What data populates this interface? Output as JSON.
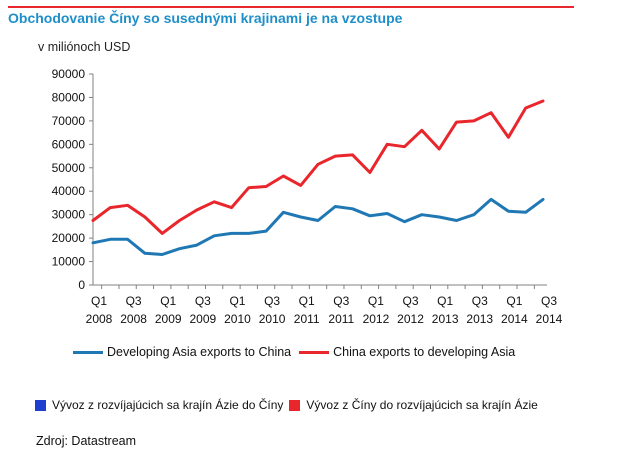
{
  "title": "Obchodovanie Číny so susednými krajinami je na vzostupe",
  "unit_label": "v milióno ch USD",
  "source": "Zdroj: Datastream",
  "colors": {
    "blue": "#1f78b4",
    "red": "#e8262b",
    "title": "#1f8fc9"
  },
  "legend": [
    {
      "label": "Developing Asia exports to China",
      "color": "#1f78b4"
    },
    {
      "label": "China exports to developing Asia",
      "color": "#e8262b"
    }
  ],
  "legend_sk": [
    {
      "label": "Vývoz z  rozvíjajúcich sa krajín Ázie do Číny",
      "color": "#1f3fd0"
    },
    {
      "label": "Vývoz z  Číny do rozvíjajúcich sa krajín Ázie",
      "color": "#e8262b"
    }
  ],
  "chart_data": {
    "type": "line",
    "title": "Obchodovanie Číny so susednými krajinami je na vzostupe",
    "ylabel": "v miliónoch USD",
    "ylim": [
      0,
      90000
    ],
    "yticks": [
      0,
      10000,
      20000,
      30000,
      40000,
      50000,
      60000,
      70000,
      80000,
      90000
    ],
    "x": [
      "Q1 2008",
      "Q2 2008",
      "Q3 2008",
      "Q4 2008",
      "Q1 2009",
      "Q2 2009",
      "Q3 2009",
      "Q4 2009",
      "Q1 2010",
      "Q2 2010",
      "Q3 2010",
      "Q4 2010",
      "Q1 2011",
      "Q2 2011",
      "Q3 2011",
      "Q4 2011",
      "Q1 2012",
      "Q2 2012",
      "Q3 2012",
      "Q4 2012",
      "Q1 2013",
      "Q2 2013",
      "Q3 2013",
      "Q4 2013",
      "Q1 2014",
      "Q2 2014",
      "Q3 2014"
    ],
    "xtick_labels": [
      {
        "q": "Q1",
        "y": "2008",
        "index": 0
      },
      {
        "q": "Q3",
        "y": "2008",
        "index": 2
      },
      {
        "q": "Q1",
        "y": "2009",
        "index": 4
      },
      {
        "q": "Q3",
        "y": "2009",
        "index": 6
      },
      {
        "q": "Q1",
        "y": "2010",
        "index": 8
      },
      {
        "q": "Q3",
        "y": "2010",
        "index": 10
      },
      {
        "q": "Q1",
        "y": "2011",
        "index": 12
      },
      {
        "q": "Q3",
        "y": "2011",
        "index": 14
      },
      {
        "q": "Q1",
        "y": "2012",
        "index": 16
      },
      {
        "q": "Q3",
        "y": "2012",
        "index": 18
      },
      {
        "q": "Q1",
        "y": "2013",
        "index": 20
      },
      {
        "q": "Q3",
        "y": "2013",
        "index": 22
      },
      {
        "q": "Q1",
        "y": "2014",
        "index": 24
      },
      {
        "q": "Q3",
        "y": "2014",
        "index": 26
      }
    ],
    "series": [
      {
        "name": "Developing Asia exports to China",
        "color": "#1f78b4",
        "values": [
          18000,
          19500,
          19500,
          13500,
          13000,
          15500,
          17000,
          21000,
          22000,
          22000,
          23000,
          31000,
          29000,
          27500,
          33500,
          32500,
          29500,
          30500,
          27000,
          30000,
          29000,
          27500,
          30000,
          36500,
          31500,
          31000,
          36500
        ]
      },
      {
        "name": "China exports to developing Asia",
        "color": "#e8262b",
        "values": [
          27500,
          33000,
          34000,
          29000,
          22000,
          27500,
          32000,
          35500,
          33000,
          41500,
          42000,
          46500,
          42500,
          51500,
          55000,
          55500,
          48000,
          60000,
          59000,
          66000,
          58000,
          69500,
          70000,
          73500,
          63000,
          75500,
          78500
        ]
      }
    ],
    "grid": false,
    "legend_position": "bottom"
  }
}
